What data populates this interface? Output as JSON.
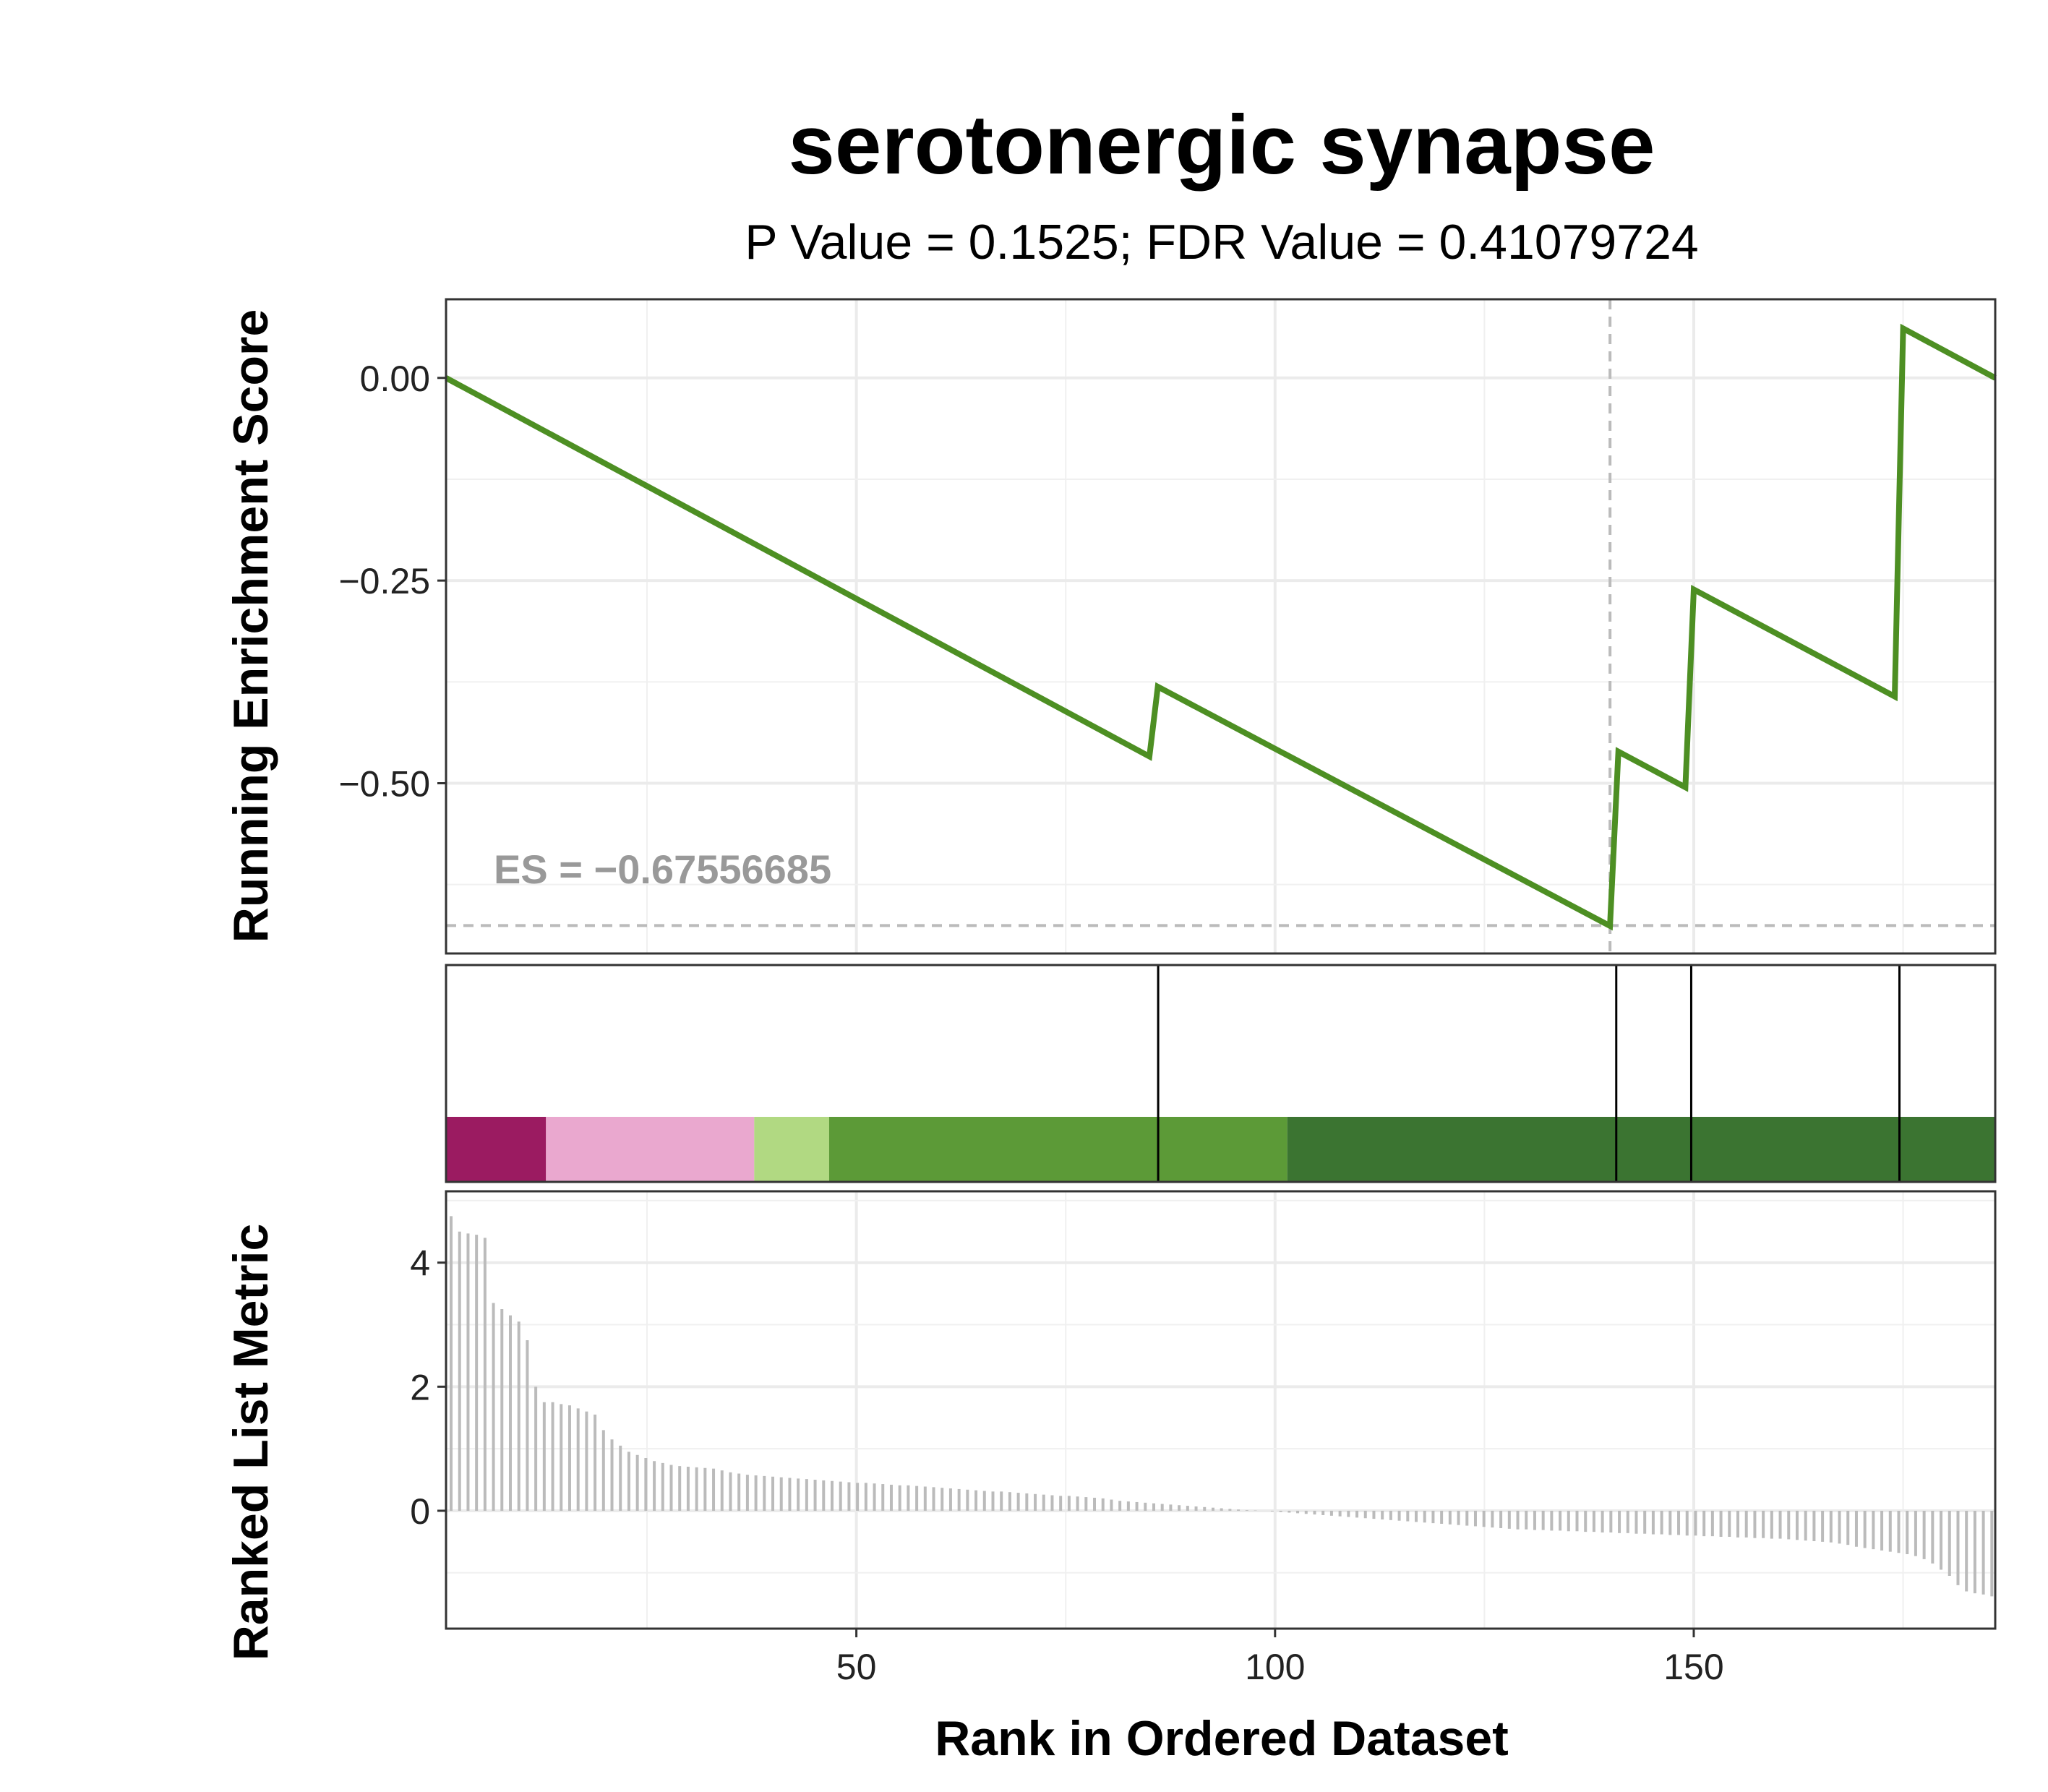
{
  "chart_data": {
    "type": "line",
    "title": "serotonergic synapse",
    "subtitle": "P Value = 0.1525; FDR Value = 0.41079724",
    "xlabel": "Rank in Ordered Dataset",
    "xlim": [
      1,
      186
    ],
    "x_ticks": [
      50,
      100,
      150
    ],
    "grid": true,
    "colors": {
      "es_line": "#4D8F23",
      "reference": "#BBBBBB",
      "es_label": "#999999",
      "hit_line": "#000000",
      "metric_bar": "#BBBBBB",
      "axis_text": "#222222"
    },
    "panels": {
      "enrichment": {
        "ylabel": "Running Enrichment Score",
        "ylim": [
          -0.71,
          0.097
        ],
        "y_ticks": [
          0.0,
          -0.25,
          -0.5
        ],
        "y_tick_labels": [
          "0.00",
          "−0.25",
          "−0.50"
        ],
        "es_label": "ES = −0.67556685",
        "es_value": -0.67556685,
        "es_rank": 140,
        "series": [
          {
            "x": [
              1,
              85,
              86,
              140,
              141,
              149,
              150,
              174,
              175,
              186
            ],
            "y": [
              0.0,
              -0.467,
              -0.381,
              -0.676,
              -0.461,
              -0.505,
              -0.261,
              -0.393,
              0.061,
              0.0
            ]
          }
        ]
      },
      "hits": {
        "hit_ranks": [
          86,
          141,
          150,
          175
        ],
        "color_bands": [
          {
            "start": 0,
            "end": 12,
            "color": "#9B1B61"
          },
          {
            "start": 12,
            "end": 37,
            "color": "#EAA8CF"
          },
          {
            "start": 37,
            "end": 46,
            "color": "#B1D982"
          },
          {
            "start": 46,
            "end": 101,
            "color": "#5C9A37"
          },
          {
            "start": 101,
            "end": 186,
            "color": "#3B7431"
          }
        ]
      },
      "metric": {
        "ylabel": "Ranked List Metric",
        "ylim": [
          -1.9,
          5.15
        ],
        "y_ticks": [
          4,
          2,
          0
        ],
        "y_tick_labels": [
          "4",
          "2",
          "0"
        ],
        "values": [
          4.75,
          4.5,
          4.47,
          4.45,
          4.4,
          3.35,
          3.25,
          3.15,
          3.05,
          2.75,
          2.0,
          1.75,
          1.75,
          1.72,
          1.7,
          1.65,
          1.6,
          1.55,
          1.3,
          1.15,
          1.05,
          0.95,
          0.9,
          0.85,
          0.8,
          0.77,
          0.74,
          0.72,
          0.71,
          0.7,
          0.69,
          0.68,
          0.65,
          0.62,
          0.6,
          0.58,
          0.57,
          0.56,
          0.55,
          0.54,
          0.53,
          0.52,
          0.51,
          0.5,
          0.49,
          0.48,
          0.47,
          0.46,
          0.45,
          0.45,
          0.44,
          0.43,
          0.42,
          0.41,
          0.41,
          0.4,
          0.39,
          0.38,
          0.37,
          0.36,
          0.35,
          0.34,
          0.33,
          0.32,
          0.31,
          0.31,
          0.3,
          0.29,
          0.28,
          0.27,
          0.26,
          0.25,
          0.24,
          0.24,
          0.23,
          0.22,
          0.21,
          0.2,
          0.18,
          0.16,
          0.15,
          0.14,
          0.13,
          0.12,
          0.11,
          0.1,
          0.09,
          0.08,
          0.07,
          0.06,
          0.05,
          0.04,
          0.03,
          0.02,
          0.01,
          0.005,
          0.0,
          -0.01,
          -0.02,
          -0.03,
          -0.04,
          -0.05,
          -0.06,
          -0.07,
          -0.08,
          -0.09,
          -0.1,
          -0.11,
          -0.12,
          -0.13,
          -0.14,
          -0.15,
          -0.16,
          -0.17,
          -0.18,
          -0.19,
          -0.2,
          -0.21,
          -0.22,
          -0.23,
          -0.24,
          -0.25,
          -0.26,
          -0.27,
          -0.28,
          -0.29,
          -0.3,
          -0.3,
          -0.31,
          -0.31,
          -0.32,
          -0.32,
          -0.33,
          -0.33,
          -0.34,
          -0.34,
          -0.35,
          -0.35,
          -0.36,
          -0.36,
          -0.37,
          -0.37,
          -0.38,
          -0.38,
          -0.39,
          -0.39,
          -0.4,
          -0.4,
          -0.41,
          -0.41,
          -0.42,
          -0.42,
          -0.43,
          -0.43,
          -0.44,
          -0.44,
          -0.45,
          -0.45,
          -0.46,
          -0.47,
          -0.48,
          -0.49,
          -0.5,
          -0.51,
          -0.53,
          -0.55,
          -0.58,
          -0.6,
          -0.62,
          -0.64,
          -0.66,
          -0.68,
          -0.7,
          -0.73,
          -0.78,
          -0.85,
          -0.95,
          -1.05,
          -1.2,
          -1.3,
          -1.33,
          -1.35,
          -1.38
        ]
      }
    }
  }
}
